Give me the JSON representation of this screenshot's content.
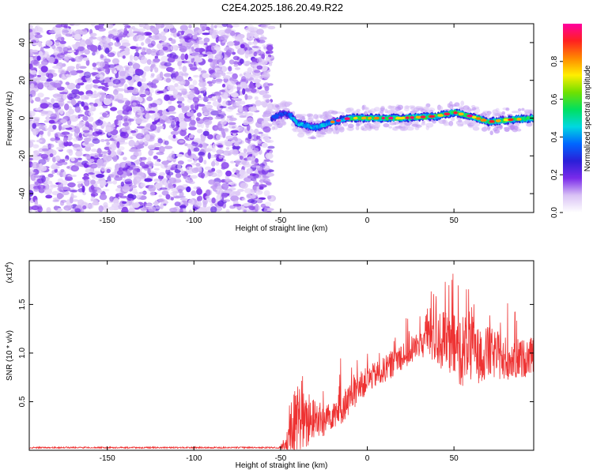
{
  "title": "C2E4.2025.186.20.49.R22",
  "chart_data": [
    {
      "type": "heatmap",
      "xlabel": "Height of straight line (km)",
      "ylabel": "Frequency (Hz)",
      "xlim": [
        -195,
        96
      ],
      "ylim": [
        -50,
        50
      ],
      "x_ticks": [
        -150,
        -100,
        -50,
        0,
        50
      ],
      "y_ticks": [
        -40,
        -20,
        0,
        20,
        40
      ],
      "noise_region_x": [
        -195,
        -55
      ],
      "ridge": {
        "x_start": -55,
        "x_end": 96,
        "frequency_points": [
          [
            -55,
            0
          ],
          [
            -50,
            2
          ],
          [
            -45,
            2
          ],
          [
            -40,
            -3
          ],
          [
            -30,
            -5
          ],
          [
            -20,
            -2
          ],
          [
            -10,
            0
          ],
          [
            0,
            0
          ],
          [
            20,
            0
          ],
          [
            40,
            1
          ],
          [
            50,
            3
          ],
          [
            60,
            1
          ],
          [
            70,
            -2
          ],
          [
            80,
            -1
          ],
          [
            96,
            0
          ]
        ]
      },
      "colorbar": {
        "label": "Normalized spectral amplitude",
        "range": [
          0,
          1
        ],
        "ticks": [
          "0.0",
          "0.2",
          "0.4",
          "0.6",
          "0.8"
        ],
        "colors": [
          "#ffffff",
          "#d9c2f5",
          "#7a2bea",
          "#2a1fd8",
          "#0066ff",
          "#00d8e0",
          "#00e060",
          "#70e000",
          "#ffee00",
          "#ff8800",
          "#ff2020",
          "#ff00a0"
        ]
      }
    },
    {
      "type": "line",
      "xlabel": "Height of straight line (km)",
      "ylabel": "SNR (10 * v/v)",
      "exponent_label": "(x10",
      "exponent_power": "4",
      "exponent_close": ")",
      "xlim": [
        -195,
        96
      ],
      "ylim": [
        0,
        1.95
      ],
      "x_ticks": [
        -150,
        -100,
        -50,
        0,
        50
      ],
      "y_ticks": [
        0.5,
        1.0,
        1.5
      ],
      "y_tick_labels": [
        "0.5",
        "1.0",
        "1.5"
      ],
      "color": "#ee3333",
      "envelope": {
        "x": [
          -195,
          -52,
          -50,
          -45,
          -42,
          -40,
          -38,
          -35,
          -30,
          -25,
          -20,
          -15,
          -10,
          -5,
          0,
          10,
          20,
          30,
          35,
          40,
          45,
          50,
          55,
          60,
          65,
          70,
          80,
          90,
          96
        ],
        "base": [
          0.02,
          0.02,
          0.03,
          0.08,
          0.15,
          0.3,
          0.25,
          0.2,
          0.3,
          0.25,
          0.35,
          0.4,
          0.5,
          0.6,
          0.7,
          0.8,
          0.95,
          1.05,
          1.15,
          1.1,
          1.05,
          1.0,
          0.95,
          1.0,
          0.9,
          0.95,
          0.9,
          0.9,
          0.95
        ],
        "amp": [
          0.0,
          0.0,
          0.04,
          0.3,
          0.9,
          0.8,
          0.75,
          0.6,
          0.45,
          0.4,
          0.35,
          0.4,
          0.35,
          0.35,
          0.3,
          0.3,
          0.35,
          0.35,
          0.55,
          0.75,
          0.7,
          0.75,
          0.85,
          0.8,
          0.6,
          0.6,
          0.5,
          0.45,
          0.4
        ]
      }
    }
  ]
}
